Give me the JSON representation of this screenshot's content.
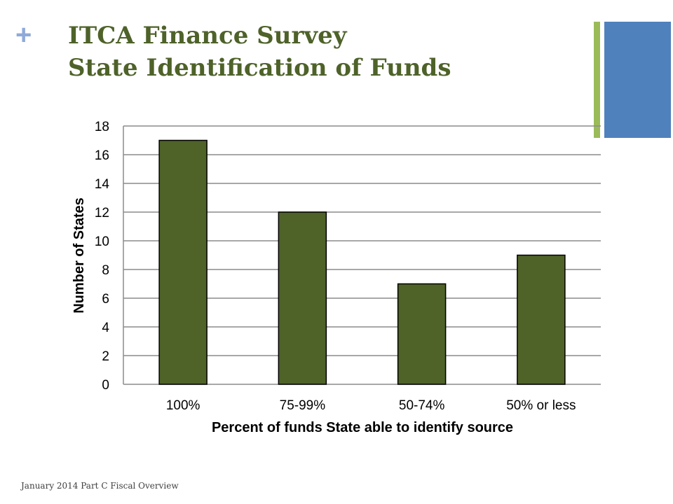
{
  "slide": {
    "plus_symbol": "+",
    "title_line1": "ITCA Finance Survey",
    "title_line2": "State Identification of Funds",
    "footer": "January 2014 Part C Fiscal Overview",
    "accent_colors": {
      "green": "#9bbb59",
      "blue": "#4f81bd",
      "title": "#4e6229"
    }
  },
  "chart_data": {
    "type": "bar",
    "categories": [
      "100%",
      "75-99%",
      "50-74%",
      "50% or less"
    ],
    "values": [
      17,
      12,
      7,
      9
    ],
    "xlabel": "Percent of funds State able to identify source",
    "ylabel": "Number of States",
    "ylim": [
      0,
      18
    ],
    "yticks": [
      0,
      2,
      4,
      6,
      8,
      10,
      12,
      14,
      16,
      18
    ],
    "grid": true,
    "bar_color": "#4f6228"
  }
}
